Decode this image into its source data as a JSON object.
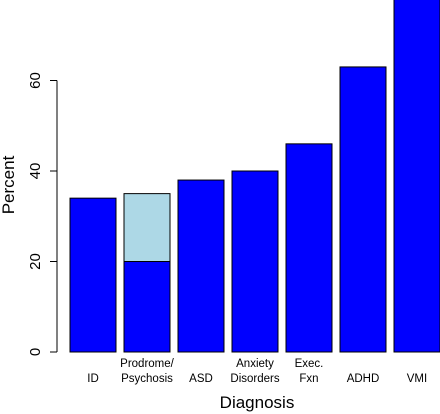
{
  "chart_data": {
    "type": "bar",
    "xlabel": "Diagnosis",
    "ylabel": "Percent",
    "ylim": [
      0,
      80
    ],
    "yticks": [
      0,
      20,
      40,
      60
    ],
    "grid": false,
    "categories": [
      {
        "lines": [
          "ID"
        ]
      },
      {
        "lines": [
          "Prodrome/",
          "Psychosis"
        ]
      },
      {
        "lines": [
          "ASD"
        ]
      },
      {
        "lines": [
          "Anxiety",
          "Disorders"
        ]
      },
      {
        "lines": [
          "Exec.",
          "Fxn"
        ]
      },
      {
        "lines": [
          "ADHD"
        ]
      },
      {
        "lines": [
          "VMI"
        ]
      }
    ],
    "series": [
      {
        "values": [
          34,
          20,
          38,
          40,
          46,
          63,
          78
        ],
        "color": "#0000ff"
      },
      {
        "values": [
          0,
          15,
          0,
          0,
          0,
          0,
          0
        ],
        "color": "#add8e6"
      }
    ]
  }
}
